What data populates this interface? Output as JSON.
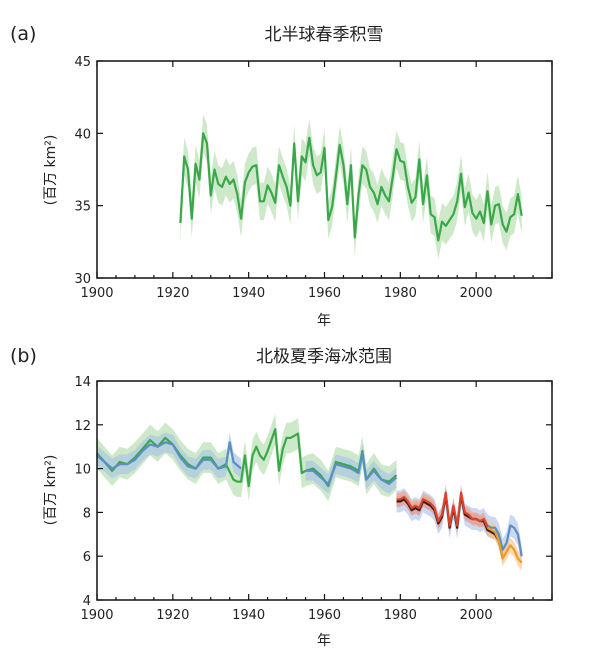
{
  "chart_data": [
    {
      "type": "line",
      "panel_label": "(a)",
      "title": "北半球春季积雪",
      "xlabel": "年",
      "ylabel": "(百万 km²)",
      "xlim": [
        1900,
        2020
      ],
      "ylim": [
        30,
        45
      ],
      "xticks": [
        1900,
        1920,
        1940,
        1960,
        1980,
        2000
      ],
      "yticks": [
        30,
        35,
        40,
        45
      ],
      "grid": false,
      "series": [
        {
          "color": "#3aa84a",
          "band_color": "#b9dfb2",
          "band_halfwidth": 1.3,
          "x": [
            1922,
            1923,
            1924,
            1925,
            1926,
            1927,
            1928,
            1929,
            1930,
            1931,
            1932,
            1933,
            1934,
            1935,
            1936,
            1937,
            1938,
            1939,
            1940,
            1941,
            1942,
            1943,
            1944,
            1945,
            1946,
            1947,
            1948,
            1949,
            1950,
            1951,
            1952,
            1953,
            1954,
            1955,
            1956,
            1957,
            1958,
            1959,
            1960,
            1961,
            1962,
            1963,
            1964,
            1965,
            1966,
            1967,
            1968,
            1969,
            1970,
            1971,
            1972,
            1973,
            1974,
            1975,
            1976,
            1977,
            1978,
            1979,
            1980,
            1981,
            1982,
            1983,
            1984,
            1985,
            1986,
            1987,
            1988,
            1989,
            1990,
            1991,
            1992,
            1993,
            1994,
            1995,
            1996,
            1997,
            1998,
            1999,
            2000,
            2001,
            2002,
            2003,
            2004,
            2005,
            2006,
            2007,
            2008,
            2009,
            2010,
            2011,
            2012
          ],
          "y": [
            33.8,
            38.4,
            37.5,
            34.1,
            37.9,
            36.8,
            40.0,
            39.3,
            35.7,
            37.5,
            36.5,
            36.3,
            37.0,
            36.5,
            36.8,
            35.8,
            34.1,
            36.6,
            37.3,
            37.7,
            37.8,
            35.3,
            35.3,
            36.4,
            35.9,
            35.2,
            37.8,
            37.0,
            36.3,
            35.0,
            39.3,
            35.3,
            38.4,
            38.0,
            39.7,
            37.8,
            37.1,
            37.3,
            39.0,
            34.0,
            34.9,
            37.0,
            39.2,
            37.8,
            35.1,
            37.8,
            32.8,
            35.8,
            37.8,
            37.5,
            36.3,
            35.9,
            35.1,
            36.3,
            35.7,
            35.3,
            37.0,
            38.9,
            38.1,
            38.0,
            36.3,
            35.2,
            35.6,
            38.2,
            35.1,
            37.1,
            34.4,
            34.2,
            32.6,
            33.9,
            33.6,
            34.0,
            34.4,
            35.3,
            37.2,
            34.9,
            35.9,
            34.5,
            34.1,
            34.6,
            33.8,
            36.0,
            33.7,
            35.0,
            35.1,
            33.7,
            33.2,
            34.2,
            34.4,
            35.8,
            34.3
          ]
        }
      ]
    },
    {
      "type": "line",
      "panel_label": "(b)",
      "title": "北极夏季海冰范围",
      "xlabel": "年",
      "ylabel": "(百万 km²)",
      "xlim": [
        1900,
        2020
      ],
      "ylim": [
        4,
        14
      ],
      "xticks": [
        1900,
        1920,
        1940,
        1960,
        1980,
        2000
      ],
      "yticks": [
        4,
        6,
        8,
        10,
        12,
        14
      ],
      "grid": false,
      "series": [
        {
          "color": "#3aa84a",
          "band_color": "#b9dfb2",
          "band_halfwidth": 0.7,
          "x": [
            1900,
            1902,
            1904,
            1906,
            1908,
            1910,
            1912,
            1914,
            1916,
            1918,
            1920,
            1922,
            1924,
            1926,
            1928,
            1930,
            1932,
            1934,
            1936,
            1937,
            1938,
            1939,
            1940,
            1941,
            1942,
            1943,
            1944,
            1945,
            1946,
            1947,
            1948,
            1949,
            1950,
            1951,
            1952,
            1953,
            1954,
            1955,
            1957,
            1959,
            1961,
            1963,
            1965,
            1967,
            1969,
            1970,
            1971,
            1973,
            1975,
            1977,
            1979
          ],
          "y": [
            10.7,
            10.3,
            9.9,
            10.3,
            10.2,
            10.5,
            10.9,
            11.3,
            11.0,
            11.4,
            11.1,
            10.6,
            10.2,
            10.0,
            10.5,
            10.5,
            10.0,
            10.2,
            9.5,
            9.4,
            9.4,
            10.6,
            9.2,
            10.6,
            11.0,
            10.6,
            10.4,
            10.8,
            11.3,
            11.8,
            9.9,
            10.9,
            11.4,
            11.4,
            11.5,
            11.6,
            9.8,
            9.9,
            10.0,
            9.7,
            9.2,
            10.3,
            10.2,
            10.1,
            9.9,
            10.8,
            9.5,
            10.0,
            9.5,
            9.4,
            9.7
          ]
        },
        {
          "color": "#5a8fc4",
          "band_color": "#aec6e4",
          "band_halfwidth": 0.45,
          "x": [
            1900,
            1902,
            1904,
            1906,
            1908,
            1910,
            1912,
            1914,
            1916,
            1918,
            1920,
            1922,
            1924,
            1926,
            1928,
            1930,
            1932,
            1934,
            1935,
            1936,
            1938
          ],
          "y": [
            10.6,
            10.3,
            10.0,
            10.2,
            10.2,
            10.4,
            10.8,
            11.1,
            11.0,
            11.2,
            11.1,
            10.5,
            10.1,
            10.0,
            10.4,
            10.4,
            10.0,
            10.1,
            11.2,
            10.3,
            10.0
          ]
        },
        {
          "color": "#5a8fc4",
          "band_color": "#aec6e4",
          "band_halfwidth": 0.45,
          "x": [
            1955,
            1957,
            1959,
            1961,
            1963,
            1965,
            1967,
            1969,
            1970,
            1971,
            1973,
            1975,
            1977,
            1979
          ],
          "y": [
            9.9,
            9.9,
            9.6,
            9.3,
            10.2,
            10.1,
            10.0,
            9.8,
            10.7,
            9.5,
            9.9,
            9.5,
            9.3,
            9.6
          ]
        },
        {
          "color": "#5a8fc4",
          "band_color": "#b7c8ec",
          "band_halfwidth": 0.5,
          "x": [
            1979,
            1980,
            1981,
            1982,
            1983,
            1984,
            1985,
            1986,
            1987,
            1988,
            1989,
            1990,
            1991,
            1992,
            1993,
            1994,
            1995,
            1996,
            1997,
            1998,
            1999,
            2000,
            2001,
            2002,
            2003,
            2004,
            2005,
            2006,
            2007,
            2008,
            2009,
            2010,
            2011,
            2012
          ],
          "y": [
            8.5,
            8.5,
            8.6,
            8.4,
            8.1,
            8.2,
            8.1,
            8.5,
            8.4,
            8.3,
            8.1,
            7.5,
            7.8,
            8.8,
            7.3,
            8.2,
            7.3,
            8.8,
            7.9,
            7.8,
            7.7,
            7.7,
            7.6,
            7.7,
            7.4,
            7.3,
            7.3,
            7.0,
            6.3,
            6.6,
            7.4,
            7.3,
            7.0,
            6.0
          ]
        },
        {
          "color": "#3a1e1e",
          "band_color": "#c9a0a0",
          "band_halfwidth": 0.25,
          "x": [
            1979,
            1980,
            1981,
            1982,
            1983,
            1984,
            1985,
            1986,
            1987,
            1988,
            1989,
            1990,
            1991,
            1992,
            1993,
            1994,
            1995,
            1996,
            1997,
            1998,
            1999,
            2000,
            2001,
            2002,
            2003,
            2004,
            2005,
            2006,
            2007
          ],
          "y": [
            8.5,
            8.5,
            8.6,
            8.4,
            8.1,
            8.2,
            8.1,
            8.5,
            8.4,
            8.3,
            8.1,
            7.5,
            7.8,
            8.8,
            7.3,
            8.2,
            7.3,
            8.8,
            7.9,
            7.8,
            7.7,
            7.7,
            7.6,
            7.6,
            7.2,
            7.1,
            7.0,
            6.7,
            5.9
          ]
        },
        {
          "color": "#d9452a",
          "band_color": "#efa48e",
          "band_halfwidth": 0.3,
          "x": [
            1979,
            1980,
            1981,
            1982,
            1983,
            1984,
            1985,
            1986,
            1987,
            1988,
            1989,
            1990,
            1991,
            1992,
            1993,
            1994,
            1995,
            1996,
            1997,
            1998,
            1999,
            2000,
            2001,
            2002,
            2003
          ],
          "y": [
            8.6,
            8.6,
            8.7,
            8.5,
            8.2,
            8.3,
            8.2,
            8.6,
            8.5,
            8.4,
            8.2,
            7.6,
            7.9,
            8.9,
            7.4,
            8.3,
            7.4,
            8.9,
            8.0,
            7.9,
            7.7,
            7.7,
            7.6,
            7.7,
            7.3
          ]
        },
        {
          "color": "#f0992e",
          "band_color": "#f6c98a",
          "band_halfwidth": 0.35,
          "x": [
            2003,
            2004,
            2005,
            2006,
            2007,
            2008,
            2009,
            2010,
            2011,
            2012
          ],
          "y": [
            7.3,
            7.2,
            7.1,
            6.7,
            5.9,
            6.2,
            6.5,
            6.3,
            5.9,
            5.7
          ]
        }
      ]
    }
  ]
}
